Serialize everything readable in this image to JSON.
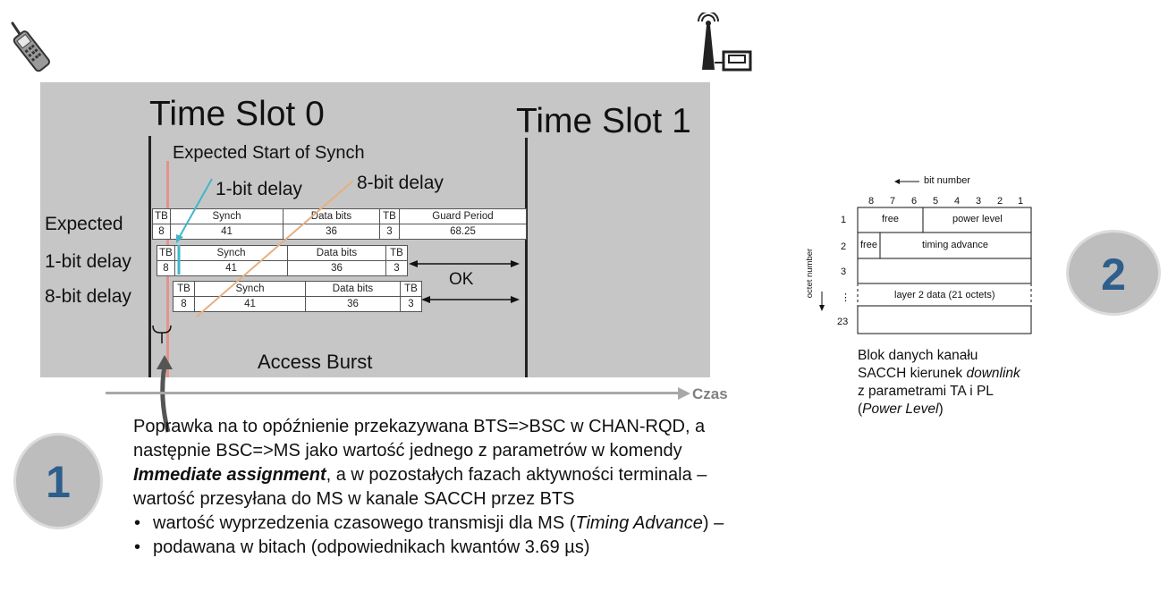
{
  "diagram": {
    "time_slot_0": "Time Slot 0",
    "time_slot_1": "Time Slot 1",
    "expected_start": "Expected Start of Synch",
    "one_bit_delay_note": "1-bit delay",
    "eight_bit_delay_note": "8-bit delay",
    "rows": [
      {
        "label": "Expected",
        "headers": [
          "TB",
          "Synch",
          "Data bits",
          "TB",
          "Guard Period"
        ],
        "values": [
          "8",
          "41",
          "36",
          "3",
          "68.25"
        ]
      },
      {
        "label": "1-bit delay",
        "headers": [
          "TB",
          "Synch",
          "Data bits",
          "TB"
        ],
        "values": [
          "8",
          "41",
          "36",
          "3"
        ]
      },
      {
        "label": "8-bit delay",
        "headers": [
          "TB",
          "Synch",
          "Data bits",
          "TB"
        ],
        "values": [
          "8",
          "41",
          "36",
          "3"
        ]
      }
    ],
    "ok_label": "OK",
    "access_burst": "Access Burst"
  },
  "time_axis_label": "Czas",
  "circle_1": "1",
  "circle_2": "2",
  "description": {
    "line1": "Poprawka na to opóźnienie przekazywana BTS=>BSC w CHAN-RQD, a",
    "line2": "następnie BSC=>MS jako wartość jednego z parametrów w komendy",
    "line3_emph": "Immediate assignment",
    "line3_rest": ", a w pozostałych fazach aktywności terminala –",
    "line4": "wartość przesyłana do MS w kanale SACCH przez BTS",
    "bullet1_pre": "wartość wyprzedzenia czasowego transmisji dla MS (",
    "bullet1_emph": "Timing Advance",
    "bullet1_post": ") –",
    "bullet2": "podawana w bitach (odpowiednikach kwantów 3.69 µs)"
  },
  "sacch_block": {
    "bit_number_label": "bit number",
    "bits": [
      "8",
      "7",
      "6",
      "5",
      "4",
      "3",
      "2",
      "1"
    ],
    "octet_number_label": "octet number",
    "octets": [
      "1",
      "2",
      "3",
      "⋮",
      "23"
    ],
    "row1": {
      "left": "free",
      "right": "power level"
    },
    "row2": {
      "left": "free",
      "right": "timing advance"
    },
    "layer2": "layer 2 data (21 octets)"
  },
  "caption": {
    "line1": "Blok danych kanału",
    "line2_pre": "SACCH kierunek ",
    "line2_emph": "downlink",
    "line3": "z parametrami TA i PL",
    "line4_pre": "(",
    "line4_emph": "Power Level",
    "line4_post": ")"
  },
  "icons": [
    "mobile-phone-icon",
    "bts-tower-icon"
  ]
}
